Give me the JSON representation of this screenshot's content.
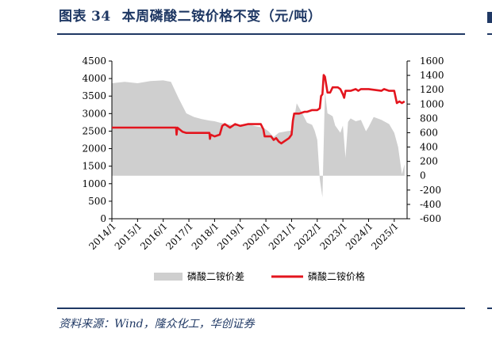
{
  "figure": {
    "label": "图表",
    "number": "34",
    "title": "本周磷酸二铵价格不变（元/吨）"
  },
  "source": "资料来源：Wind，隆众化工，华创证券",
  "colors": {
    "area": "#cfcfcf",
    "line": "#e3151e",
    "brand": "#1f3864"
  },
  "chart_data": {
    "type": "line",
    "categories": [
      "2014/1",
      "2015/1",
      "2016/1",
      "2017/1",
      "2018/1",
      "2019/1",
      "2020/1",
      "2021/1",
      "2022/1",
      "2023/1",
      "2024/1",
      "2025/1"
    ],
    "y_left": {
      "ticks": [
        0,
        500,
        1000,
        1500,
        2000,
        2500,
        3000,
        3500,
        4000,
        4500
      ],
      "range": [
        0,
        4500
      ]
    },
    "y_right": {
      "ticks": [
        -600,
        -400,
        -200,
        0,
        200,
        400,
        600,
        800,
        1000,
        1200,
        1400,
        1600
      ],
      "range": [
        -600,
        1600
      ]
    },
    "legend": {
      "position": "bottom",
      "entries": [
        "磷酸二铵价差",
        "磷酸二铵价格"
      ]
    },
    "series": [
      {
        "name": "磷酸二铵价差",
        "type": "area",
        "axis": "right",
        "x": [
          2014.0,
          2014.5,
          2015.0,
          2015.5,
          2016.0,
          2016.3,
          2016.6,
          2016.9,
          2017.2,
          2017.5,
          2017.8,
          2018.0,
          2018.2,
          2018.5,
          2018.8,
          2019.0,
          2019.3,
          2019.6,
          2019.9,
          2020.1,
          2020.3,
          2020.5,
          2020.8,
          2021.0,
          2021.1,
          2021.2,
          2021.4,
          2021.6,
          2021.8,
          2021.9,
          2022.0,
          2022.1,
          2022.2,
          2022.3,
          2022.4,
          2022.5,
          2022.6,
          2022.7,
          2022.9,
          2023.0,
          2023.1,
          2023.2,
          2023.3,
          2023.5,
          2023.7,
          2023.9,
          2024.0,
          2024.2,
          2024.5,
          2024.8,
          2025.0,
          2025.15,
          2025.3,
          2025.4
        ],
        "y": [
          1290,
          1310,
          1290,
          1320,
          1330,
          1310,
          1080,
          870,
          820,
          790,
          770,
          760,
          740,
          720,
          700,
          710,
          720,
          690,
          670,
          620,
          540,
          600,
          620,
          630,
          800,
          1010,
          880,
          740,
          710,
          630,
          500,
          -50,
          -300,
          1180,
          870,
          850,
          830,
          700,
          600,
          700,
          250,
          750,
          800,
          760,
          780,
          620,
          680,
          820,
          780,
          720,
          600,
          400,
          20,
          160
        ]
      },
      {
        "name": "磷酸二铵价格",
        "type": "line",
        "axis": "left",
        "x": [
          2014.0,
          2015.0,
          2016.0,
          2016.5,
          2016.52,
          2016.55,
          2016.75,
          2016.9,
          2017.0,
          2017.5,
          2017.8,
          2017.82,
          2017.85,
          2018.0,
          2018.2,
          2018.3,
          2018.4,
          2018.6,
          2018.8,
          2019.0,
          2019.3,
          2019.6,
          2019.8,
          2019.9,
          2019.95,
          2020.0,
          2020.2,
          2020.3,
          2020.4,
          2020.5,
          2020.6,
          2020.7,
          2020.9,
          2021.0,
          2021.05,
          2021.1,
          2021.3,
          2021.5,
          2021.6,
          2021.8,
          2022.0,
          2022.1,
          2022.15,
          2022.2,
          2022.25,
          2022.3,
          2022.4,
          2022.5,
          2022.6,
          2022.8,
          2022.9,
          2023.0,
          2023.05,
          2023.1,
          2023.3,
          2023.5,
          2023.6,
          2023.7,
          2023.8,
          2024.0,
          2024.5,
          2024.6,
          2024.8,
          2025.0,
          2025.1,
          2025.2,
          2025.3,
          2025.4
        ],
        "y": [
          2600,
          2600,
          2600,
          2600,
          2400,
          2600,
          2480,
          2450,
          2450,
          2450,
          2450,
          2280,
          2400,
          2350,
          2400,
          2650,
          2700,
          2600,
          2700,
          2650,
          2700,
          2700,
          2700,
          2550,
          2350,
          2350,
          2350,
          2250,
          2300,
          2200,
          2150,
          2200,
          2300,
          2400,
          2800,
          3000,
          3000,
          3050,
          3050,
          3100,
          3100,
          3150,
          3500,
          3550,
          4100,
          4050,
          3600,
          3600,
          3750,
          3750,
          3700,
          3550,
          3450,
          3650,
          3650,
          3700,
          3650,
          3700,
          3700,
          3700,
          3650,
          3700,
          3650,
          3650,
          3300,
          3350,
          3300,
          3350
        ]
      }
    ]
  }
}
